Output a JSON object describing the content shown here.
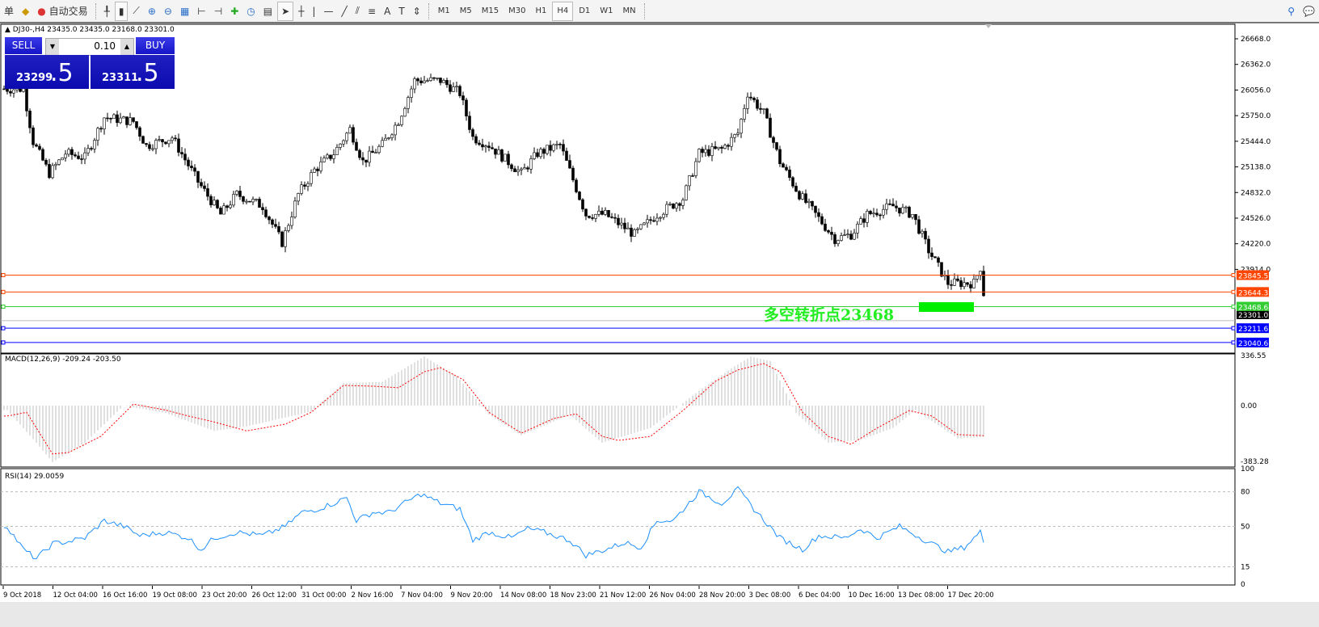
{
  "toolbar": {
    "left_cut": "单",
    "auto_trade": "自动交易",
    "timeframes": [
      "M1",
      "M5",
      "M15",
      "M30",
      "H1",
      "H4",
      "D1",
      "W1",
      "MN"
    ],
    "active_timeframe": "H4",
    "tools": [
      "bar-chart-icon",
      "candlestick-icon",
      "line-chart-icon",
      "zoom-in-icon",
      "zoom-out-icon",
      "tile-windows-icon",
      "chart-shift-icon",
      "autoscroll-icon",
      "indicators-icon",
      "periods-icon",
      "templates-icon",
      "cursor-icon",
      "crosshair-icon",
      "vertical-line-icon",
      "horizontal-line-icon",
      "trendline-icon",
      "fibo-fan-icon",
      "fibo-icon",
      "text-icon",
      "text-label-icon",
      "arrows-icon"
    ]
  },
  "chart": {
    "symbol_line": "DJ30-,H4  23435.0 23435.0 23168.0 23301.0",
    "trade_panel": {
      "sell": "SELL",
      "buy": "BUY",
      "lot": "0.10",
      "bid_main": "23299",
      "bid_frac": ".5",
      "ask_main": "23311",
      "ask_frac": ".5"
    },
    "annotation": "多空转折点23468",
    "annotation_color": "#22ee22",
    "price_axis": [
      "26668.0",
      "26362.0",
      "26056.0",
      "25750.0",
      "25444.0",
      "25138.0",
      "24832.0",
      "24526.0",
      "24220.0",
      "23914.0"
    ],
    "levels": [
      {
        "price": "23845.5",
        "color": "#ff4500"
      },
      {
        "price": "23644.3",
        "color": "#ff4500"
      },
      {
        "price": "23468.6",
        "color": "#32cd32"
      },
      {
        "price": "23211.6",
        "color": "#0000ff"
      },
      {
        "price": "23040.6",
        "color": "#0000ff"
      }
    ],
    "current_price": "23301.0",
    "price_path": [
      [
        6,
        26070
      ],
      [
        9,
        25440
      ],
      [
        14,
        25060
      ],
      [
        19,
        25300
      ],
      [
        25,
        25250
      ],
      [
        31,
        25730
      ],
      [
        40,
        25680
      ],
      [
        44,
        25390
      ],
      [
        52,
        25490
      ],
      [
        60,
        24960
      ],
      [
        67,
        24570
      ],
      [
        72,
        24810
      ],
      [
        80,
        24670
      ],
      [
        86,
        24235
      ],
      [
        91,
        24810
      ],
      [
        96,
        25100
      ],
      [
        102,
        25300
      ],
      [
        107,
        25590
      ],
      [
        111,
        25200
      ],
      [
        117,
        25400
      ],
      [
        122,
        25690
      ],
      [
        127,
        26170
      ],
      [
        135,
        26170
      ],
      [
        141,
        26020
      ],
      [
        145,
        25490
      ],
      [
        150,
        25400
      ],
      [
        160,
        25060
      ],
      [
        165,
        25300
      ],
      [
        172,
        25400
      ],
      [
        180,
        24570
      ],
      [
        186,
        24570
      ],
      [
        195,
        24330
      ],
      [
        202,
        24570
      ],
      [
        210,
        24760
      ],
      [
        215,
        25300
      ],
      [
        222,
        25350
      ],
      [
        227,
        25540
      ],
      [
        230,
        26020
      ],
      [
        235,
        25780
      ],
      [
        240,
        25200
      ],
      [
        246,
        24810
      ],
      [
        250,
        24620
      ],
      [
        257,
        24280
      ],
      [
        262,
        24330
      ],
      [
        267,
        24570
      ],
      [
        275,
        24670
      ],
      [
        281,
        24570
      ],
      [
        286,
        24140
      ],
      [
        292,
        23750
      ],
      [
        300,
        23750
      ],
      [
        302,
        23940
      ],
      [
        304,
        23320
      ]
    ],
    "macd": {
      "label": "MACD(12,26,9) -209.24 -203.50",
      "axis": [
        "336.55",
        "0.00",
        "-383.28"
      ],
      "main": [
        [
          1,
          -30
        ],
        [
          10,
          -250
        ],
        [
          15,
          -380
        ],
        [
          25,
          -250
        ],
        [
          37,
          0
        ],
        [
          50,
          -50
        ],
        [
          65,
          -170
        ],
        [
          75,
          -140
        ],
        [
          95,
          -40
        ],
        [
          105,
          150
        ],
        [
          117,
          160
        ],
        [
          130,
          330
        ],
        [
          140,
          200
        ],
        [
          150,
          -60
        ],
        [
          160,
          -200
        ],
        [
          175,
          -60
        ],
        [
          185,
          -250
        ],
        [
          200,
          -150
        ],
        [
          215,
          100
        ],
        [
          225,
          250
        ],
        [
          231,
          330
        ],
        [
          237,
          300
        ],
        [
          245,
          -50
        ],
        [
          255,
          -250
        ],
        [
          265,
          -230
        ],
        [
          275,
          -150
        ],
        [
          282,
          -30
        ],
        [
          295,
          -220
        ],
        [
          304,
          -209
        ]
      ],
      "signal": [
        [
          1,
          -70
        ],
        [
          7,
          -45
        ],
        [
          15,
          -325
        ],
        [
          20,
          -315
        ],
        [
          30,
          -206
        ],
        [
          40,
          10
        ],
        [
          50,
          -30
        ],
        [
          57,
          -70
        ],
        [
          65,
          -110
        ],
        [
          75,
          -170
        ],
        [
          87,
          -125
        ],
        [
          95,
          -45
        ],
        [
          105,
          136
        ],
        [
          115,
          130
        ],
        [
          122,
          120
        ],
        [
          130,
          228
        ],
        [
          135,
          255
        ],
        [
          142,
          175
        ],
        [
          150,
          -45
        ],
        [
          160,
          -185
        ],
        [
          170,
          -87
        ],
        [
          177,
          -55
        ],
        [
          185,
          -207
        ],
        [
          190,
          -234
        ],
        [
          200,
          -207
        ],
        [
          210,
          -33
        ],
        [
          220,
          163
        ],
        [
          227,
          240
        ],
        [
          235,
          283
        ],
        [
          240,
          228
        ],
        [
          247,
          -45
        ],
        [
          255,
          -207
        ],
        [
          262,
          -260
        ],
        [
          270,
          -152
        ],
        [
          280,
          -33
        ],
        [
          287,
          -70
        ],
        [
          295,
          -195
        ],
        [
          304,
          -203
        ]
      ]
    },
    "rsi": {
      "label": "RSI(14) 29.0059",
      "axis": [
        "100",
        "80",
        "50",
        "15",
        "0"
      ],
      "values": [
        [
          1,
          50
        ],
        [
          6,
          30
        ],
        [
          10,
          22
        ],
        [
          15,
          35
        ],
        [
          20,
          37
        ],
        [
          25,
          40
        ],
        [
          31,
          55
        ],
        [
          37,
          50
        ],
        [
          42,
          42
        ],
        [
          50,
          45
        ],
        [
          57,
          40
        ],
        [
          61,
          30
        ],
        [
          65,
          40
        ],
        [
          72,
          45
        ],
        [
          80,
          42
        ],
        [
          87,
          50
        ],
        [
          92,
          62
        ],
        [
          97,
          65
        ],
        [
          102,
          70
        ],
        [
          106,
          75
        ],
        [
          109,
          55
        ],
        [
          114,
          62
        ],
        [
          119,
          62
        ],
        [
          125,
          72
        ],
        [
          129,
          78
        ],
        [
          135,
          70
        ],
        [
          141,
          65
        ],
        [
          145,
          38
        ],
        [
          150,
          45
        ],
        [
          157,
          40
        ],
        [
          162,
          48
        ],
        [
          167,
          45
        ],
        [
          175,
          38
        ],
        [
          180,
          25
        ],
        [
          186,
          30
        ],
        [
          192,
          36
        ],
        [
          197,
          32
        ],
        [
          202,
          55
        ],
        [
          207,
          55
        ],
        [
          215,
          80
        ],
        [
          222,
          70
        ],
        [
          227,
          82
        ],
        [
          232,
          65
        ],
        [
          240,
          40
        ],
        [
          247,
          30
        ],
        [
          252,
          42
        ],
        [
          260,
          40
        ],
        [
          265,
          48
        ],
        [
          270,
          40
        ],
        [
          277,
          50
        ],
        [
          285,
          38
        ],
        [
          292,
          28
        ],
        [
          297,
          32
        ],
        [
          302,
          45
        ],
        [
          304,
          29
        ]
      ]
    },
    "time_axis": [
      "9 Oct 2018",
      "12 Oct 04:00",
      "16 Oct 16:00",
      "19 Oct 08:00",
      "23 Oct 20:00",
      "26 Oct 12:00",
      "31 Oct 00:00",
      "2 Nov 16:00",
      "7 Nov 04:00",
      "9 Nov 20:00",
      "14 Nov 08:00",
      "18 Nov 23:00",
      "21 Nov 12:00",
      "26 Nov 04:00",
      "28 Nov 20:00",
      "3 Dec 08:00",
      "6 Dec 04:00",
      "10 Dec 16:00",
      "13 Dec 08:00",
      "17 Dec 20:00"
    ]
  }
}
